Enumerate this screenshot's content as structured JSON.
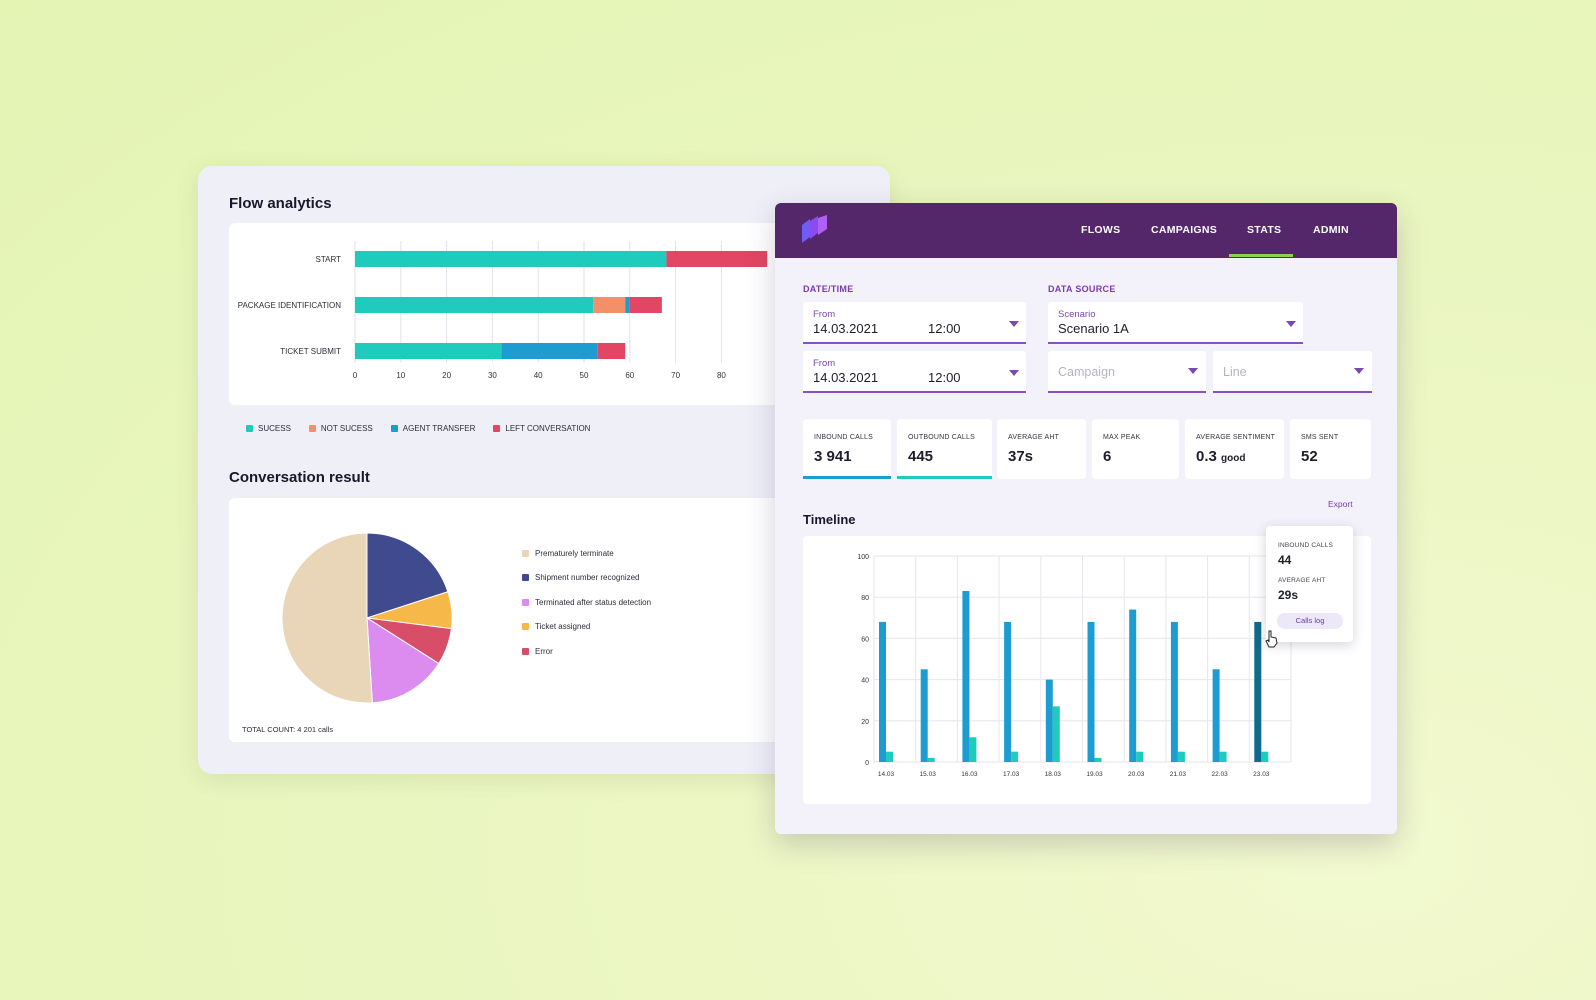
{
  "flow_analytics": {
    "title": "Flow analytics",
    "legend": [
      {
        "label": "SUCESS",
        "color": "#1ecbbc"
      },
      {
        "label": "NOT SUCESS",
        "color": "#f2906a"
      },
      {
        "label": "AGENT TRANSFER",
        "color": "#1d9cd1"
      },
      {
        "label": "LEFT CONVERSATION",
        "color": "#e24664"
      }
    ]
  },
  "conversation_result": {
    "title": "Conversation result",
    "total": "TOTAL COUNT: 4 201 calls",
    "legend": [
      {
        "label": "Prematurely terminate",
        "color": "#e9d6b8"
      },
      {
        "label": "Shipment number recognized",
        "color": "#3f4a8f"
      },
      {
        "label": "Terminated after status detection",
        "color": "#dc8cee"
      },
      {
        "label": "Ticket assigned",
        "color": "#f7b84a"
      },
      {
        "label": "Error",
        "color": "#d84e69"
      }
    ]
  },
  "dashboard": {
    "nav": [
      {
        "label": "FLOWS"
      },
      {
        "label": "CAMPAIGNS"
      },
      {
        "label": "STATS"
      },
      {
        "label": "ADMIN"
      }
    ],
    "active_tab": "STATS",
    "datetime_label": "DATE/TIME",
    "datasource_label": "DATA SOURCE",
    "from1": {
      "label": "From",
      "date": "14.03.2021",
      "time": "12:00"
    },
    "from2": {
      "label": "From",
      "date": "14.03.2021",
      "time": "12:00"
    },
    "scenario": {
      "label": "Scenario",
      "value": "Scenario 1A"
    },
    "campaign_placeholder": "Campaign",
    "line_placeholder": "Line",
    "stats": [
      {
        "label": "INBOUND CALLS",
        "value": "3 941",
        "unit": "",
        "bar_color": "#1d9cd1"
      },
      {
        "label": "OUTBOUND CALLS",
        "value": "445",
        "unit": "",
        "bar_color": "#1ecbbc"
      },
      {
        "label": "AVERAGE AHT",
        "value": "37s",
        "unit": "",
        "bar_color": ""
      },
      {
        "label": "MAX PEAK",
        "value": "6",
        "unit": "",
        "bar_color": ""
      },
      {
        "label": "AVERAGE SENTIMENT",
        "value": "0.3",
        "unit": "good",
        "bar_color": ""
      },
      {
        "label": "SMS SENT",
        "value": "52",
        "unit": "",
        "bar_color": ""
      }
    ],
    "export_label": "Export",
    "timeline_title": "Timeline",
    "tooltip": {
      "inbound_label": "INBOUND CALLS",
      "inbound_value": "44",
      "aht_label": "AVERAGE AHT",
      "aht_value": "29s",
      "button": "Calls log"
    }
  },
  "colors": {
    "accent": "#54276a",
    "purple": "#7d3aaf",
    "success": "#1ecbbc",
    "transfer": "#1d9cd1",
    "left": "#e24664",
    "not_success": "#f2906a"
  },
  "chart_data": [
    {
      "type": "bar",
      "orientation": "horizontal",
      "stacked": true,
      "title": "Flow analytics",
      "categories": [
        "START",
        "PACKAGE IDENTIFICATION",
        "TICKET SUBMIT"
      ],
      "series": [
        {
          "name": "SUCESS",
          "values": [
            68,
            52,
            32
          ]
        },
        {
          "name": "NOT SUCESS",
          "values": [
            0,
            7,
            0
          ]
        },
        {
          "name": "AGENT TRANSFER",
          "values": [
            0,
            1,
            21
          ]
        },
        {
          "name": "LEFT CONVERSATION",
          "values": [
            22,
            7,
            6
          ]
        }
      ],
      "xticks": [
        0,
        10,
        20,
        30,
        40,
        50,
        60,
        70,
        80
      ],
      "xlim": [
        0,
        90
      ]
    },
    {
      "type": "pie",
      "title": "Conversation result",
      "labels": [
        "Shipment number recognized",
        "Ticket assigned",
        "Error",
        "Terminated after status detection",
        "Prematurely terminate"
      ],
      "values": [
        20,
        7,
        7,
        15,
        51
      ]
    },
    {
      "type": "bar",
      "title": "Timeline",
      "categories": [
        "14.03",
        "15.03",
        "16.03",
        "17.03",
        "18.03",
        "19.03",
        "20.03",
        "21.03",
        "22.03",
        "23.03"
      ],
      "series": [
        {
          "name": "INBOUND CALLS",
          "values": [
            68,
            45,
            83,
            68,
            40,
            68,
            74,
            68,
            45,
            68
          ]
        },
        {
          "name": "OUTBOUND CALLS",
          "values": [
            5,
            2,
            12,
            5,
            27,
            2,
            5,
            5,
            5,
            5
          ]
        }
      ],
      "yticks": [
        0,
        20,
        40,
        60,
        80,
        100
      ],
      "ylim": [
        0,
        100
      ],
      "highlighted_index": 9
    }
  ]
}
